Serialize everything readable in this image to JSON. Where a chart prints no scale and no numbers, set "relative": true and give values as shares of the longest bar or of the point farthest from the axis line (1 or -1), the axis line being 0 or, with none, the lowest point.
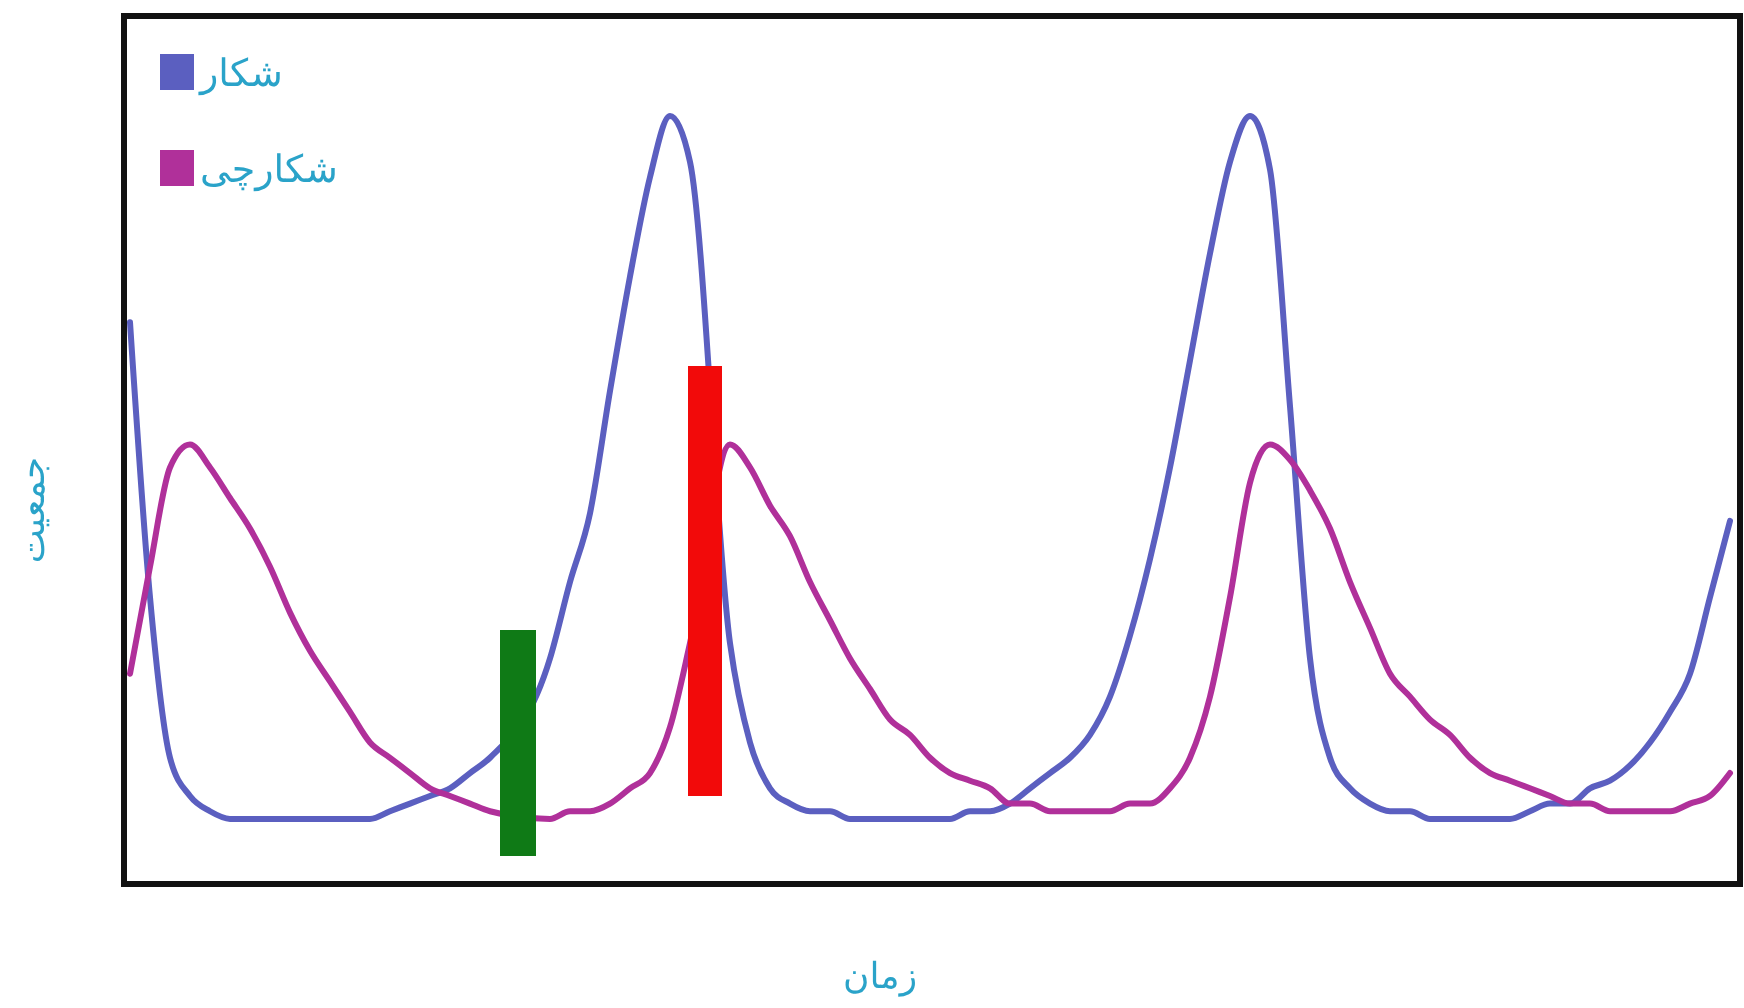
{
  "chart_data": {
    "type": "line",
    "relative": true,
    "xlabel": "زمان",
    "ylabel": "جمعیت",
    "legend": "top left",
    "marker": "none",
    "line_style": "solid",
    "categories": [
      null,
      null,
      null,
      null,
      null,
      null,
      null,
      null,
      null,
      null,
      null,
      null,
      null,
      null,
      null,
      null,
      null,
      null,
      null,
      null,
      null,
      null,
      null,
      null,
      null,
      null,
      null,
      null,
      null,
      null,
      null,
      null,
      null,
      null,
      null,
      null,
      null,
      null,
      null,
      null,
      null,
      null,
      null,
      null,
      null,
      null,
      null,
      null,
      null,
      null,
      null,
      null,
      null,
      null,
      null,
      null,
      null,
      null,
      null,
      null,
      null,
      null,
      null,
      null,
      null,
      null,
      null,
      null,
      null,
      null,
      null,
      null,
      null,
      null,
      null,
      null,
      null,
      null,
      null,
      null,
      null
    ],
    "series": [
      {
        "name": "شکار",
        "color": "#5b5fc0",
        "values": [
          0.73,
          0.37,
          0.16,
          0.11,
          0.09,
          0.08,
          0.08,
          0.08,
          0.08,
          0.08,
          0.08,
          0.08,
          0.08,
          0.09,
          0.1,
          0.11,
          0.12,
          0.14,
          0.16,
          null,
          null,
          0.29,
          0.39,
          0.48,
          0.64,
          0.79,
          0.92,
          1.0,
          0.94,
          null,
          0.31,
          0.18,
          0.12,
          0.1,
          0.09,
          0.09,
          0.08,
          0.08,
          0.08,
          0.08,
          0.08,
          0.08,
          0.09,
          0.09,
          0.1,
          0.12,
          0.14,
          0.16,
          0.19,
          0.24,
          0.32,
          0.42,
          0.54,
          0.68,
          0.82,
          0.94,
          1.0,
          0.93,
          0.62,
          0.29,
          0.16,
          0.12,
          0.1,
          0.09,
          0.09,
          0.08,
          0.08,
          0.08,
          0.08,
          0.08,
          0.09,
          0.1,
          0.1,
          0.12,
          0.13,
          0.15,
          0.18,
          0.22,
          0.27,
          0.37,
          0.47
        ]
      },
      {
        "name": "شکارچی",
        "color": "#b0309a",
        "values": [
          0.27,
          0.41,
          0.54,
          0.57,
          0.54,
          0.5,
          0.46,
          0.41,
          0.35,
          0.3,
          0.26,
          0.22,
          0.18,
          0.16,
          0.14,
          0.12,
          0.11,
          0.1,
          0.09,
          null,
          null,
          0.08,
          0.09,
          0.09,
          0.1,
          0.12,
          0.14,
          0.2,
          0.31,
          null,
          0.57,
          0.54,
          0.49,
          0.45,
          0.39,
          0.34,
          0.29,
          0.25,
          0.21,
          0.19,
          0.16,
          0.14,
          0.13,
          0.12,
          0.1,
          0.1,
          0.09,
          0.09,
          0.09,
          0.09,
          0.1,
          0.1,
          0.12,
          0.16,
          0.24,
          0.37,
          0.52,
          0.57,
          0.55,
          0.51,
          0.46,
          0.39,
          0.33,
          0.27,
          0.24,
          0.21,
          0.19,
          0.16,
          0.14,
          0.13,
          0.12,
          0.11,
          0.1,
          0.1,
          0.09,
          0.09,
          0.09,
          0.09,
          0.1,
          0.11,
          0.14
        ]
      }
    ]
  }
}
